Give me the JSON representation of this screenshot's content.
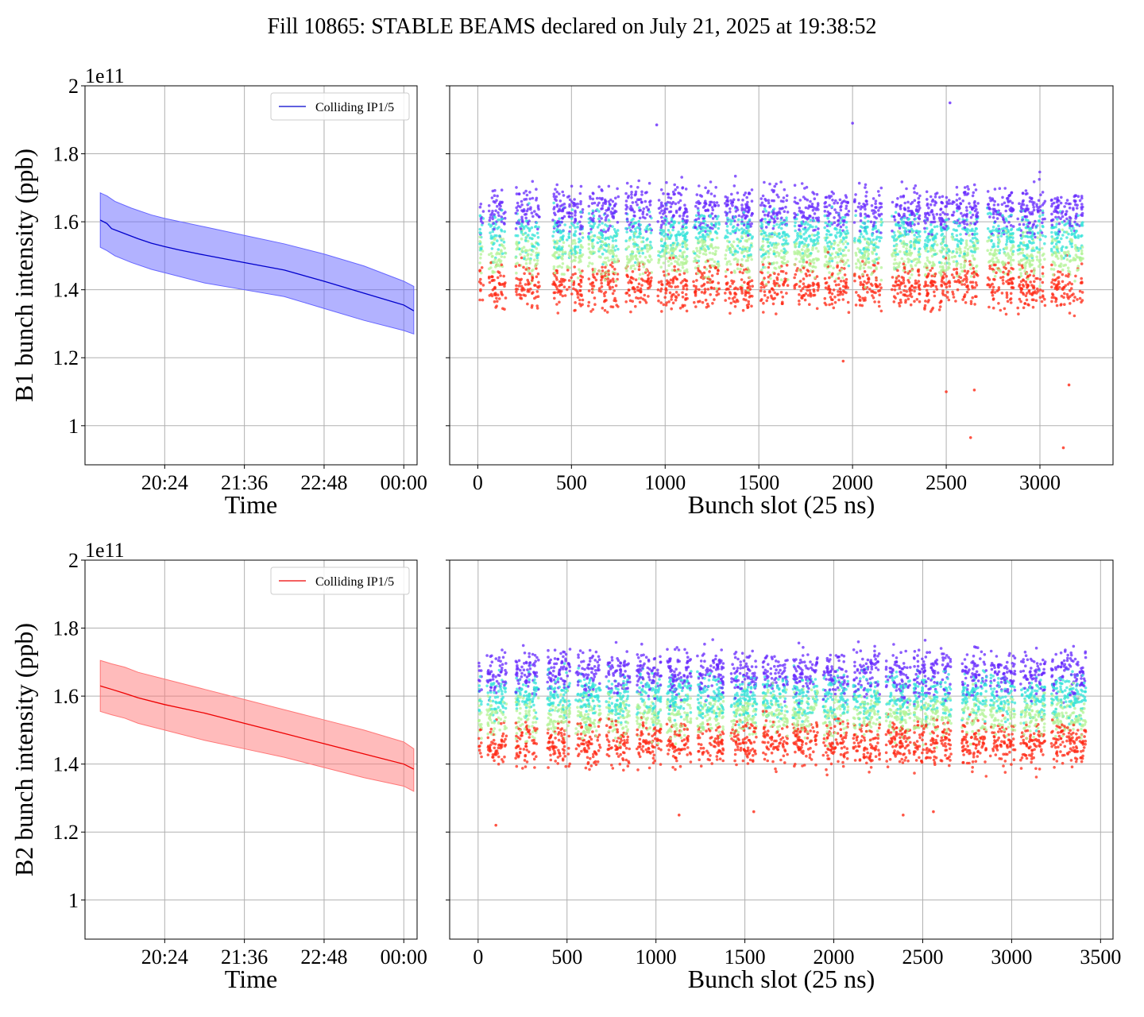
{
  "figure": {
    "title": "Fill 10865: STABLE BEAMS declared on July 21, 2025 at 19:38:52"
  },
  "chart_data": [
    {
      "type": "line",
      "beam": "B1",
      "ylabel": "B1 bunch intensity (ppb)",
      "xlabel": "Time",
      "y_offset_label": "1e11",
      "ylim": [
        0.885,
        2.0
      ],
      "yticks": [
        1.0,
        1.2,
        1.4,
        1.6,
        1.8,
        2.0
      ],
      "xlim_hours": [
        19.2,
        24.2
      ],
      "xticks": [
        {
          "hour": 20.4,
          "label": "20:24"
        },
        {
          "hour": 21.6,
          "label": "21:36"
        },
        {
          "hour": 22.8,
          "label": "22:48"
        },
        {
          "hour": 24.0,
          "label": "00:00"
        }
      ],
      "legend": "Colliding IP1/5",
      "legend_position": "upper right",
      "grid": true,
      "color": "#0000cc",
      "band_color": "#6666ff",
      "mean_points": [
        [
          19.43,
          1.605
        ],
        [
          19.53,
          1.595
        ],
        [
          19.6,
          1.58
        ],
        [
          19.8,
          1.565
        ],
        [
          20.0,
          1.55
        ],
        [
          20.2,
          1.537
        ],
        [
          20.4,
          1.527
        ],
        [
          20.6,
          1.518
        ],
        [
          21.0,
          1.502
        ],
        [
          21.6,
          1.48
        ],
        [
          22.2,
          1.458
        ],
        [
          22.8,
          1.425
        ],
        [
          23.4,
          1.39
        ],
        [
          24.0,
          1.355
        ],
        [
          24.15,
          1.338
        ]
      ],
      "upper_points": [
        [
          19.43,
          1.685
        ],
        [
          19.53,
          1.676
        ],
        [
          19.65,
          1.66
        ],
        [
          19.9,
          1.64
        ],
        [
          20.2,
          1.62
        ],
        [
          20.4,
          1.61
        ],
        [
          21.0,
          1.585
        ],
        [
          21.6,
          1.56
        ],
        [
          22.2,
          1.535
        ],
        [
          22.8,
          1.505
        ],
        [
          23.4,
          1.47
        ],
        [
          24.0,
          1.425
        ],
        [
          24.15,
          1.41
        ]
      ],
      "lower_points": [
        [
          19.43,
          1.525
        ],
        [
          19.53,
          1.515
        ],
        [
          19.65,
          1.5
        ],
        [
          19.9,
          1.48
        ],
        [
          20.2,
          1.46
        ],
        [
          20.4,
          1.45
        ],
        [
          21.0,
          1.42
        ],
        [
          21.6,
          1.4
        ],
        [
          22.2,
          1.38
        ],
        [
          22.8,
          1.345
        ],
        [
          23.4,
          1.31
        ],
        [
          24.0,
          1.28
        ],
        [
          24.15,
          1.27
        ]
      ]
    },
    {
      "type": "scatter",
      "beam": "B1",
      "xlabel": "Bunch slot (25 ns)",
      "xlim": [
        -150,
        3390
      ],
      "xticks": [
        0,
        500,
        1000,
        1500,
        2000,
        2500,
        3000
      ],
      "ylim": [
        0.885,
        2.0
      ],
      "yticks": [
        1.0,
        1.2,
        1.4,
        1.6,
        1.8,
        2.0
      ],
      "grid": true,
      "colormap": "rainbow",
      "trains": [
        [
          10,
          30
        ],
        [
          60,
          150
        ],
        [
          200,
          330
        ],
        [
          400,
          560
        ],
        [
          590,
          750
        ],
        [
          790,
          930
        ],
        [
          960,
          1120
        ],
        [
          1150,
          1290
        ],
        [
          1320,
          1470
        ],
        [
          1510,
          1660
        ],
        [
          1690,
          1820
        ],
        [
          1850,
          1980
        ],
        [
          2010,
          2160
        ],
        [
          2210,
          2360
        ],
        [
          2380,
          2520
        ],
        [
          2530,
          2670
        ],
        [
          2720,
          2860
        ],
        [
          2880,
          3030
        ],
        [
          3060,
          3230
        ]
      ],
      "mean_range": [
        1.4,
        1.65
      ],
      "outliers": [
        [
          2500,
          1.1
        ],
        [
          2630,
          0.965
        ],
        [
          3125,
          0.935
        ],
        [
          1950,
          1.19
        ],
        [
          3155,
          1.12
        ],
        [
          2650,
          1.105
        ],
        [
          2520,
          1.95
        ],
        [
          2000,
          1.89
        ],
        [
          955,
          1.885
        ]
      ]
    },
    {
      "type": "line",
      "beam": "B2",
      "ylabel": "B2 bunch intensity (ppb)",
      "xlabel": "Time",
      "y_offset_label": "1e11",
      "ylim": [
        0.885,
        2.0
      ],
      "yticks": [
        1.0,
        1.2,
        1.4,
        1.6,
        1.8,
        2.0
      ],
      "xlim_hours": [
        19.2,
        24.2
      ],
      "xticks": [
        {
          "hour": 20.4,
          "label": "20:24"
        },
        {
          "hour": 21.6,
          "label": "21:36"
        },
        {
          "hour": 22.8,
          "label": "22:48"
        },
        {
          "hour": 24.0,
          "label": "00:00"
        }
      ],
      "legend": "Colliding IP1/5",
      "legend_position": "upper right",
      "grid": true,
      "color": "#ee0000",
      "band_color": "#ff7777",
      "mean_points": [
        [
          19.43,
          1.63
        ],
        [
          19.6,
          1.62
        ],
        [
          19.8,
          1.608
        ],
        [
          20.0,
          1.595
        ],
        [
          20.4,
          1.575
        ],
        [
          21.0,
          1.55
        ],
        [
          21.6,
          1.52
        ],
        [
          22.2,
          1.49
        ],
        [
          22.8,
          1.46
        ],
        [
          23.4,
          1.43
        ],
        [
          24.0,
          1.4
        ],
        [
          24.15,
          1.385
        ]
      ],
      "upper_points": [
        [
          19.43,
          1.705
        ],
        [
          19.6,
          1.695
        ],
        [
          19.8,
          1.685
        ],
        [
          20.0,
          1.67
        ],
        [
          20.4,
          1.65
        ],
        [
          21.0,
          1.62
        ],
        [
          21.6,
          1.59
        ],
        [
          22.2,
          1.56
        ],
        [
          22.8,
          1.53
        ],
        [
          23.4,
          1.5
        ],
        [
          24.0,
          1.465
        ],
        [
          24.15,
          1.445
        ]
      ],
      "lower_points": [
        [
          19.43,
          1.555
        ],
        [
          19.6,
          1.545
        ],
        [
          19.8,
          1.535
        ],
        [
          20.0,
          1.52
        ],
        [
          20.4,
          1.5
        ],
        [
          21.0,
          1.47
        ],
        [
          21.6,
          1.445
        ],
        [
          22.2,
          1.42
        ],
        [
          22.8,
          1.39
        ],
        [
          23.4,
          1.36
        ],
        [
          24.0,
          1.335
        ],
        [
          24.15,
          1.32
        ]
      ]
    },
    {
      "type": "scatter",
      "beam": "B2",
      "xlabel": "Bunch slot (25 ns)",
      "xlim": [
        -160,
        3570
      ],
      "xticks": [
        0,
        500,
        1000,
        1500,
        2000,
        2500,
        3000,
        3500
      ],
      "ylim": [
        0.885,
        2.0
      ],
      "yticks": [
        1.0,
        1.2,
        1.4,
        1.6,
        1.8,
        2.0
      ],
      "grid": true,
      "colormap": "rainbow",
      "trains": [
        [
          0,
          20
        ],
        [
          50,
          160
        ],
        [
          210,
          340
        ],
        [
          390,
          520
        ],
        [
          550,
          690
        ],
        [
          720,
          860
        ],
        [
          890,
          1030
        ],
        [
          1060,
          1200
        ],
        [
          1230,
          1380
        ],
        [
          1420,
          1570
        ],
        [
          1600,
          1740
        ],
        [
          1770,
          1910
        ],
        [
          1940,
          2080
        ],
        [
          2110,
          2260
        ],
        [
          2290,
          2430
        ],
        [
          2450,
          2590
        ],
        [
          2600,
          2660
        ],
        [
          2720,
          2860
        ],
        [
          2880,
          3020
        ],
        [
          3050,
          3190
        ],
        [
          3220,
          3420
        ]
      ],
      "mean_range": [
        1.45,
        1.68
      ],
      "outliers": [
        [
          100,
          1.22
        ],
        [
          1130,
          1.25
        ],
        [
          1550,
          1.26
        ],
        [
          2390,
          1.25
        ],
        [
          2560,
          1.26
        ]
      ]
    }
  ]
}
